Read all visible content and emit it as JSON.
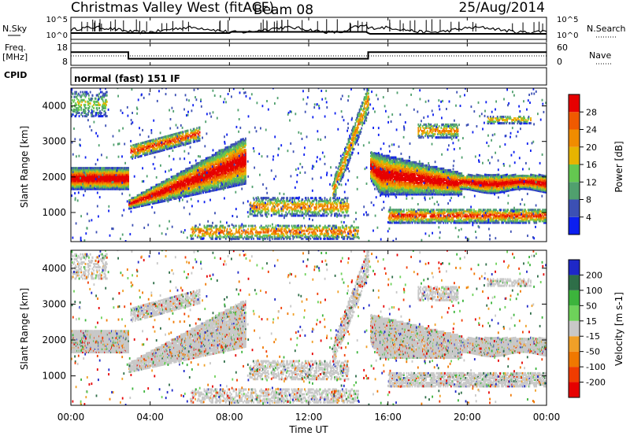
{
  "header": {
    "title": "Christmas Valley West (fitACF)",
    "beam": "Beam 08",
    "date": "25/Aug/2014"
  },
  "nsky_panel": {
    "left_label": "N.Sky",
    "right_label": "N.Search",
    "right_ticks": [
      "10^5",
      "10^0"
    ],
    "left_ticks": [
      "10^5",
      "10^0"
    ]
  },
  "freq_panel": {
    "left_label": "Freq.",
    "left_unit": "[MHz]",
    "left_ticks": [
      "18",
      "8"
    ],
    "right_label": "Nave",
    "right_ticks": [
      "60",
      "0"
    ]
  },
  "cpid_panel": {
    "label": "CPID",
    "mode_text": "normal (fast) 151 IF"
  },
  "power_panel": {
    "y_label": "Slant Range [km]",
    "y_ticks": [
      "1000",
      "2000",
      "3000",
      "4000"
    ],
    "colorbar_label": "Power [dB]",
    "colorbar_ticks": [
      "4",
      "8",
      "12",
      "16",
      "20",
      "24",
      "28"
    ],
    "colors": [
      "#0c1ff0",
      "#3c50b4",
      "#50a06e",
      "#64c850",
      "#e6b400",
      "#f08c00",
      "#f05a00",
      "#e60000"
    ]
  },
  "velocity_panel": {
    "y_label": "Slant Range [km]",
    "y_ticks": [
      "1000",
      "2000",
      "3000",
      "4000"
    ],
    "colorbar_label": "Velocity [m s-1]",
    "colorbar_ticks": [
      "200",
      "100",
      "50",
      "15",
      "-15",
      "-50",
      "-100",
      "-200"
    ],
    "colors": [
      "#1e28c8",
      "#2e6e48",
      "#3cb43c",
      "#6ed25a",
      "#c8c8c8",
      "#f0a028",
      "#f07800",
      "#f03c00",
      "#e60000"
    ]
  },
  "x_axis": {
    "label": "Time UT",
    "ticks": [
      "00:00",
      "04:00",
      "08:00",
      "12:00",
      "16:00",
      "20:00",
      "00:00"
    ]
  },
  "chart_data": {
    "type": "heatmap",
    "x_range_hours": [
      0,
      24
    ],
    "y_range_km": [
      180,
      4500
    ],
    "frequency_mhz": [
      {
        "x": 0,
        "y": 14
      },
      {
        "x": 2.9,
        "y": 14
      },
      {
        "x": 2.9,
        "y": 11
      },
      {
        "x": 15,
        "y": 11
      },
      {
        "x": 15,
        "y": 14
      },
      {
        "x": 24,
        "y": 14
      }
    ],
    "scatter_bands": [
      {
        "name": "band-a",
        "x": [
          0,
          2.9
        ],
        "range_km": [
          1700,
          2200
        ],
        "power_db": 26
      },
      {
        "name": "band-b",
        "x": [
          2.9,
          8.8
        ],
        "range_km": [
          1100,
          3000
        ],
        "power_db": 22
      },
      {
        "name": "band-c",
        "x": [
          15.2,
          19.6
        ],
        "range_km": [
          1500,
          2600
        ],
        "power_db": 24
      },
      {
        "name": "band-d",
        "x": [
          19.6,
          24
        ],
        "range_km": [
          1600,
          2000
        ],
        "power_db": 24
      }
    ]
  }
}
